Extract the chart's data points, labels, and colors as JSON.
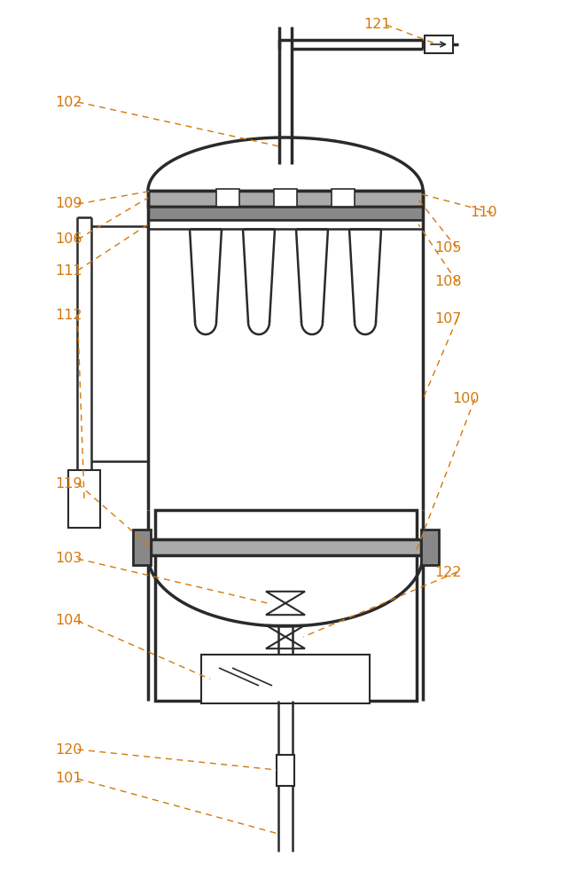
{
  "bg_color": "#ffffff",
  "line_color": "#2a2a2a",
  "label_color": "#d4780a",
  "fig_width": 6.43,
  "fig_height": 10.0
}
